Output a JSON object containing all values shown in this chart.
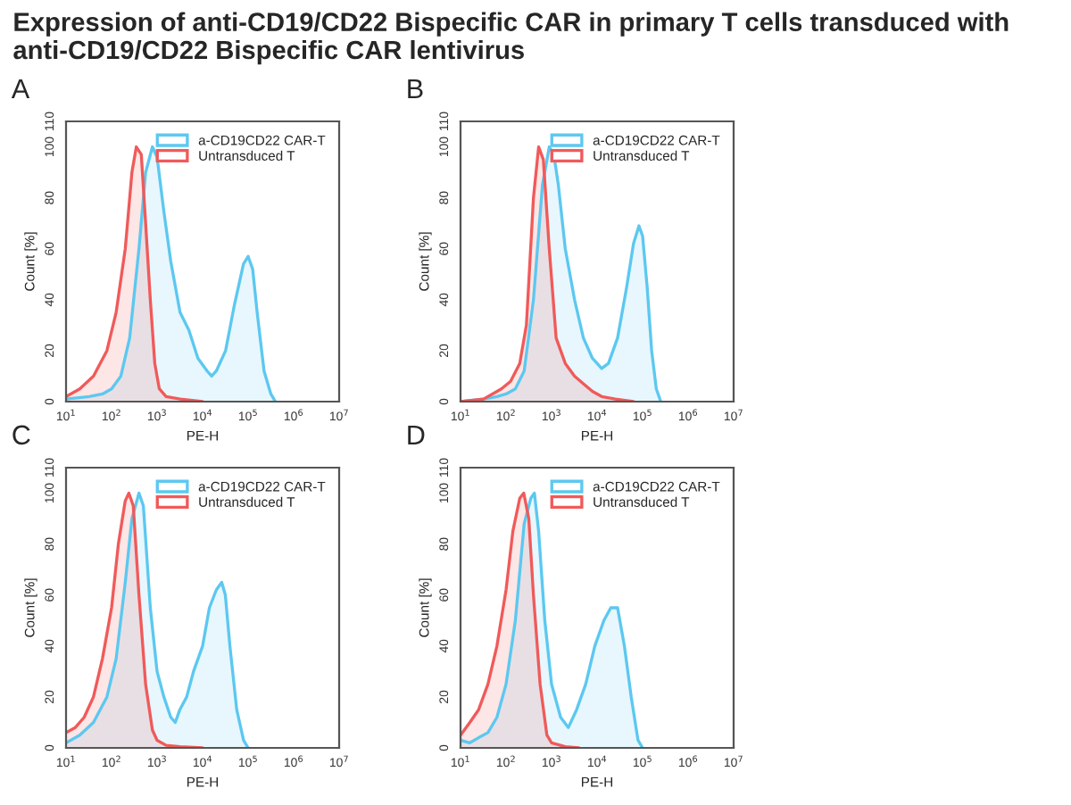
{
  "chart_data": [
    {
      "type": "area",
      "title": "A",
      "annotations": [
        "Expression of anti-CD19/CD22 Bispecific CAR in primary T cells transduced with anti-CD19/CD22 Bispecific CAR lentivirus"
      ],
      "xlabel": "PE-H",
      "ylabel": "Count [%]",
      "log": "x",
      "xlim": [
        10,
        10000000
      ],
      "ylim": [
        0,
        110
      ],
      "xticks": [
        {
          "value": 10,
          "label": "10$^{1}$"
        },
        {
          "value": 100,
          "label": "10$^{2}$"
        },
        {
          "value": 1000,
          "label": "10$^{3}$"
        },
        {
          "value": 10000,
          "label": "10$^{4}$"
        },
        {
          "value": 100000,
          "label": "10$^{5}$"
        },
        {
          "value": 1000000,
          "label": "10$^{6}$"
        },
        {
          "value": 10000000,
          "label": "10$^{7}$"
        }
      ],
      "yticks": [
        0,
        20,
        40,
        60,
        80,
        100,
        110
      ],
      "grid": false,
      "legend": "top right",
      "series": [
        {
          "name": "a-CD19CD22 CAR-T",
          "color": "#5cc8f0",
          "x": [
            10,
            32,
            63,
            100,
            160,
            250,
            400,
            560,
            790,
            1000,
            1400,
            2000,
            3200,
            5000,
            7900,
            12600,
            15800,
            20000,
            32000,
            50000,
            79000,
            100000,
            126000,
            158000,
            224000,
            316000,
            398000
          ],
          "values": [
            1,
            2,
            3,
            5,
            10,
            25,
            60,
            90,
            100,
            96,
            75,
            55,
            35,
            28,
            17,
            12,
            10,
            12,
            20,
            38,
            54,
            57,
            52,
            35,
            12,
            3,
            0
          ]
        },
        {
          "name": "Untransduced T",
          "color": "#f05a5a",
          "x": [
            10,
            20,
            40,
            79,
            126,
            200,
            280,
            350,
            450,
            560,
            710,
            890,
            1120,
            1580,
            3200,
            10000
          ],
          "values": [
            2,
            5,
            10,
            20,
            35,
            60,
            90,
            100,
            97,
            70,
            40,
            15,
            5,
            2,
            1,
            0
          ]
        }
      ]
    },
    {
      "type": "area",
      "title": "B",
      "xlabel": "PE-H",
      "ylabel": "Count [%]",
      "log": "x",
      "xlim": [
        10,
        10000000
      ],
      "ylim": [
        0,
        110
      ],
      "xticks": [
        {
          "value": 10,
          "label": "10$^{1}$"
        },
        {
          "value": 100,
          "label": "10$^{2}$"
        },
        {
          "value": 1000,
          "label": "10$^{3}$"
        },
        {
          "value": 10000,
          "label": "10$^{4}$"
        },
        {
          "value": 100000,
          "label": "10$^{5}$"
        },
        {
          "value": 1000000,
          "label": "10$^{6}$"
        },
        {
          "value": 10000000,
          "label": "10$^{7}$"
        }
      ],
      "yticks": [
        0,
        20,
        40,
        60,
        80,
        100,
        110
      ],
      "grid": false,
      "legend": "top right",
      "series": [
        {
          "name": "a-CD19CD22 CAR-T",
          "color": "#5cc8f0",
          "x": [
            10,
            32,
            63,
            100,
            160,
            250,
            400,
            630,
            890,
            1120,
            1410,
            2000,
            3200,
            5000,
            7900,
            10000,
            12600,
            17800,
            28200,
            44700,
            63100,
            83200,
            100000,
            126000,
            158000,
            200000,
            251000
          ],
          "values": [
            0,
            1,
            2,
            3,
            5,
            12,
            40,
            85,
            100,
            97,
            85,
            60,
            40,
            25,
            17,
            15,
            13,
            15,
            25,
            45,
            62,
            69,
            65,
            45,
            20,
            5,
            0
          ]
        },
        {
          "name": "Untransduced T",
          "color": "#f05a5a",
          "x": [
            10,
            32,
            79,
            126,
            200,
            280,
            400,
            520,
            660,
            890,
            1260,
            2000,
            3200,
            5000,
            7900,
            12600,
            25100,
            63100
          ],
          "values": [
            0,
            1,
            5,
            8,
            15,
            30,
            80,
            100,
            95,
            60,
            25,
            15,
            10,
            7,
            4,
            2,
            1,
            0
          ]
        }
      ]
    },
    {
      "type": "area",
      "title": "C",
      "xlabel": "PE-H",
      "ylabel": "Count [%]",
      "log": "x",
      "xlim": [
        10,
        10000000
      ],
      "ylim": [
        0,
        110
      ],
      "xticks": [
        {
          "value": 10,
          "label": "10$^{1}$"
        },
        {
          "value": 100,
          "label": "10$^{2}$"
        },
        {
          "value": 1000,
          "label": "10$^{3}$"
        },
        {
          "value": 10000,
          "label": "10$^{4}$"
        },
        {
          "value": 100000,
          "label": "10$^{5}$"
        },
        {
          "value": 1000000,
          "label": "10$^{6}$"
        },
        {
          "value": 10000000,
          "label": "10$^{7}$"
        }
      ],
      "yticks": [
        0,
        20,
        40,
        60,
        80,
        100,
        110
      ],
      "grid": false,
      "legend": "top right",
      "series": [
        {
          "name": "a-CD19CD22 CAR-T",
          "color": "#5cc8f0",
          "x": [
            10,
            20,
            40,
            79,
            126,
            200,
            280,
            400,
            500,
            710,
            1000,
            1410,
            2000,
            2510,
            3160,
            4470,
            6310,
            10000,
            14100,
            20000,
            26300,
            31600,
            39800,
            56200,
            79400,
            100000
          ],
          "values": [
            2,
            5,
            10,
            20,
            35,
            65,
            90,
            100,
            95,
            55,
            30,
            20,
            12,
            10,
            15,
            20,
            30,
            40,
            55,
            62,
            65,
            60,
            40,
            15,
            3,
            0
          ]
        },
        {
          "name": "Untransduced T",
          "color": "#f05a5a",
          "x": [
            10,
            16,
            25,
            40,
            63,
            100,
            141,
            200,
            240,
            300,
            400,
            560,
            790,
            1000,
            1580,
            3160,
            10000
          ],
          "values": [
            6,
            8,
            12,
            20,
            35,
            55,
            80,
            97,
            100,
            95,
            60,
            25,
            7,
            3,
            1,
            0.5,
            0
          ]
        }
      ]
    },
    {
      "type": "area",
      "title": "D",
      "xlabel": "PE-H",
      "ylabel": "Count [%]",
      "log": "x",
      "xlim": [
        10,
        10000000
      ],
      "ylim": [
        0,
        110
      ],
      "xticks": [
        {
          "value": 10,
          "label": "10$^{1}$"
        },
        {
          "value": 100,
          "label": "10$^{2}$"
        },
        {
          "value": 1000,
          "label": "10$^{3}$"
        },
        {
          "value": 10000,
          "label": "10$^{4}$"
        },
        {
          "value": 100000,
          "label": "10$^{5}$"
        },
        {
          "value": 1000000,
          "label": "10$^{6}$"
        },
        {
          "value": 10000000,
          "label": "10$^{7}$"
        }
      ],
      "yticks": [
        0,
        20,
        40,
        60,
        80,
        100,
        110
      ],
      "grid": false,
      "legend": "top right",
      "series": [
        {
          "name": "a-CD19CD22 CAR-T",
          "color": "#5cc8f0",
          "x": [
            10,
            16,
            25,
            40,
            63,
            100,
            160,
            250,
            350,
            420,
            520,
            710,
            1000,
            1580,
            2340,
            3550,
            5620,
            8910,
            14100,
            20000,
            28200,
            39800,
            56200,
            79400,
            100000
          ],
          "values": [
            3,
            2,
            4,
            6,
            12,
            25,
            50,
            88,
            98,
            100,
            85,
            50,
            25,
            12,
            8,
            15,
            25,
            40,
            50,
            55,
            55,
            40,
            20,
            3,
            0
          ]
        },
        {
          "name": "Untransduced T",
          "color": "#f05a5a",
          "x": [
            10,
            16,
            25,
            40,
            63,
            100,
            141,
            200,
            245,
            316,
            400,
            560,
            790,
            1000,
            2000,
            4000
          ],
          "values": [
            5,
            10,
            15,
            25,
            40,
            62,
            85,
            98,
            100,
            90,
            60,
            25,
            5,
            2,
            0.5,
            0
          ]
        }
      ]
    }
  ]
}
